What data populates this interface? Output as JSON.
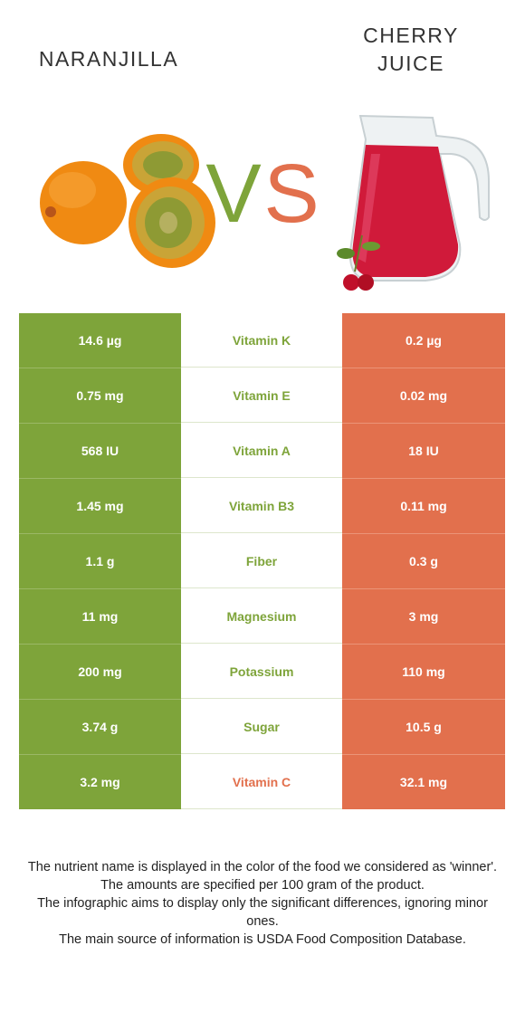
{
  "left_food": {
    "name": "NARANJILLA",
    "color": "#7ea43a"
  },
  "right_food": {
    "name_line1": "CHERRY",
    "name_line2": "JUICE",
    "color": "#e2704d"
  },
  "vs": {
    "v": "V",
    "s": "S"
  },
  "rows": [
    {
      "left": "14.6 µg",
      "nutrient": "Vitamin K",
      "right": "0.2 µg",
      "winner": "left"
    },
    {
      "left": "0.75 mg",
      "nutrient": "Vitamin E",
      "right": "0.02 mg",
      "winner": "left"
    },
    {
      "left": "568 IU",
      "nutrient": "Vitamin A",
      "right": "18 IU",
      "winner": "left"
    },
    {
      "left": "1.45 mg",
      "nutrient": "Vitamin B3",
      "right": "0.11 mg",
      "winner": "left"
    },
    {
      "left": "1.1 g",
      "nutrient": "Fiber",
      "right": "0.3 g",
      "winner": "left"
    },
    {
      "left": "11 mg",
      "nutrient": "Magnesium",
      "right": "3 mg",
      "winner": "left"
    },
    {
      "left": "200 mg",
      "nutrient": "Potassium",
      "right": "110 mg",
      "winner": "left"
    },
    {
      "left": "3.74 g",
      "nutrient": "Sugar",
      "right": "10.5 g",
      "winner": "left"
    },
    {
      "left": "3.2 mg",
      "nutrient": "Vitamin C",
      "right": "32.1 mg",
      "winner": "right"
    }
  ],
  "footer": {
    "line1": "The nutrient name is displayed in the color of the food we considered as 'winner'.",
    "line2": "The amounts are specified per 100 gram of the product.",
    "line3": "The infographic aims to display only the significant differences, ignoring minor ones.",
    "line4": "The main source of information is USDA Food Composition Database."
  }
}
